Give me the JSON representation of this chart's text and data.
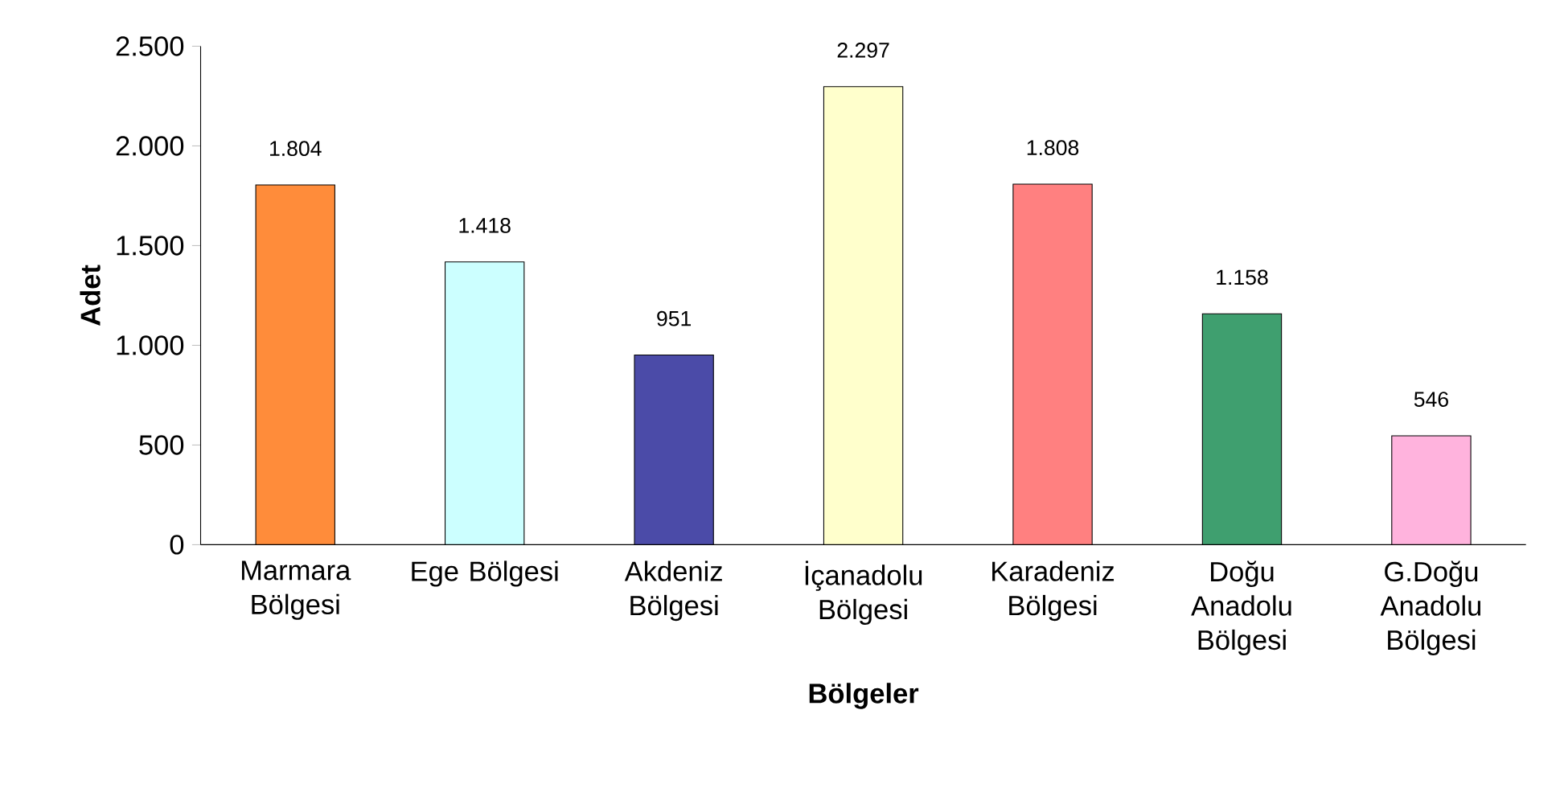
{
  "chart_data": {
    "type": "bar",
    "xlabel": "Bölgeler",
    "ylabel": "Adet",
    "categories": [
      "Marmara Bölgesi",
      "Ege Bölgesi",
      "Akdeniz Bölgesi",
      "İçanadolu Bölgesi",
      "Karadeniz Bölgesi",
      "Doğu Anadolu Bölgesi",
      "G.Doğu Anadolu Bölgesi"
    ],
    "values": [
      1804,
      1418,
      951,
      2297,
      1808,
      1158,
      546
    ],
    "value_labels": [
      "1.804",
      "1.418",
      "951",
      "2.297",
      "1.808",
      "1.158",
      "546"
    ],
    "colors": [
      "#ff8c3a",
      "#ccffff",
      "#4b4ba8",
      "#ffffcc",
      "#ff8080",
      "#3f9f6f",
      "#ffb3dd"
    ],
    "ylim": [
      0,
      2500
    ],
    "yticks": [
      0,
      {
        "value": 500,
        "label": "500"
      },
      {
        "value": 1000,
        "label": "1.000"
      },
      {
        "value": 1500,
        "label": "1.500"
      },
      {
        "value": 2000,
        "label": "2.000"
      },
      {
        "value": 2500,
        "label": "2.500"
      }
    ],
    "grid": false
  }
}
